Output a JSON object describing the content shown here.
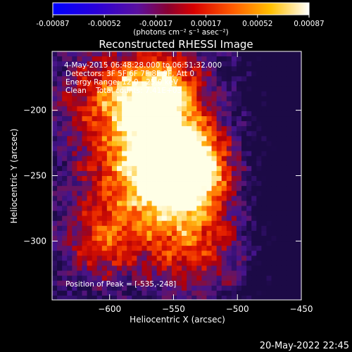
{
  "chart_data": {
    "type": "heatmap",
    "title": "Reconstructed RHESSI Image",
    "xlabel": "Heliocentric X (arcsec)",
    "ylabel": "Heliocentric Y (arcsec)",
    "xlim": [
      -645,
      -450
    ],
    "ylim": [
      -345,
      -155
    ],
    "x_ticks": [
      -600,
      -550,
      -500,
      -450
    ],
    "y_ticks": [
      -200,
      -250,
      -300
    ],
    "colorbar": {
      "label": "(photons cm⁻² s⁻¹ asec⁻²)",
      "min": -0.00087,
      "max": 0.00087,
      "ticks": [
        "-0.00087",
        "-0.00052",
        "-0.00017",
        "0.00017",
        "0.00052",
        "0.00087"
      ],
      "tick_values": [
        -0.00087,
        -0.00052,
        -0.00017,
        0.00017,
        0.00052,
        0.00087
      ]
    },
    "annotations": [
      " 4-May-2015 06:48:28.000 to 06:51:32.000",
      "Detectors: 3F 5F 6F 7F 8F 9F, Att 0",
      "Energy Range: 12.0 - 25.0 keV",
      "Clean    Total counts: 7.41E+03"
    ],
    "peak_label": "Position of Peak = [-535,-248]",
    "peak": {
      "x": -535,
      "y": -248
    },
    "footer_date": "20-May-2022 22:45"
  }
}
